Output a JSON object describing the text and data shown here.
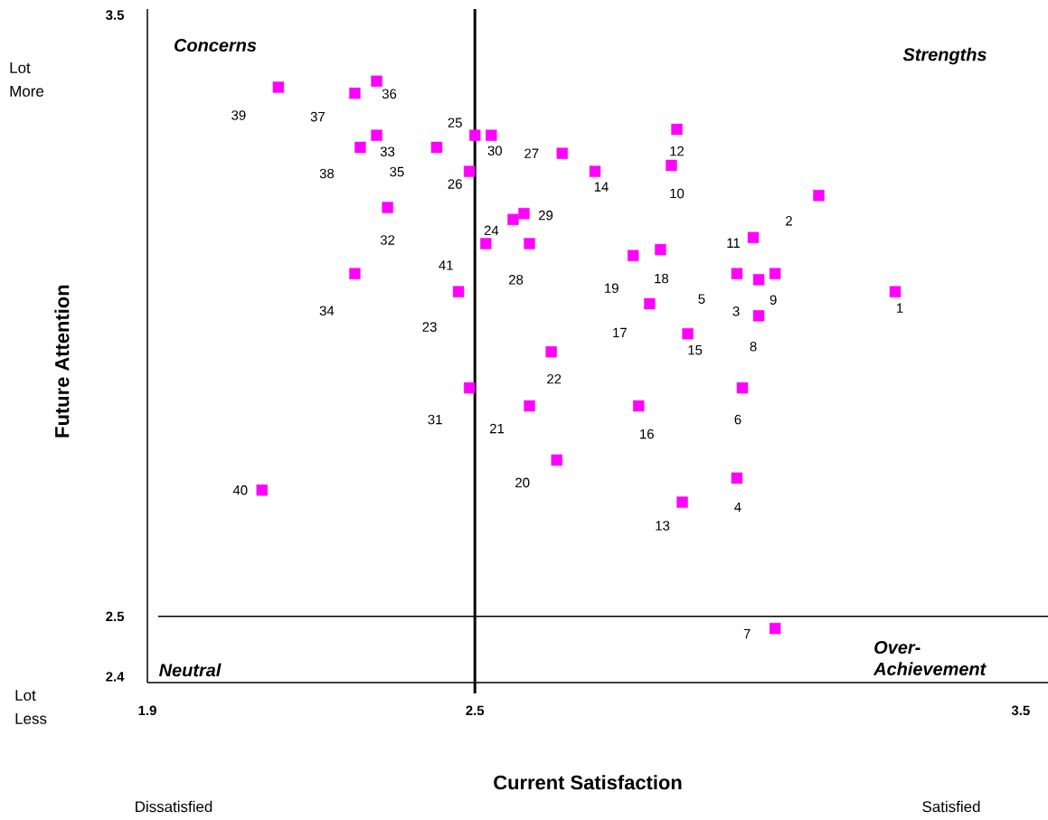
{
  "chart_data": {
    "type": "scatter",
    "xlabel": "Current Satisfaction",
    "ylabel": "Future Attention",
    "x": [
      3.27,
      3.13,
      3.02,
      2.98,
      2.98,
      2.99,
      3.05,
      3.02,
      3.05,
      2.86,
      3.01,
      2.87,
      2.88,
      2.72,
      2.89,
      2.8,
      2.82,
      2.84,
      2.79,
      2.65,
      2.6,
      2.64,
      2.47,
      2.57,
      2.5,
      2.49,
      2.66,
      2.6,
      2.59,
      2.53,
      2.49,
      2.34,
      2.32,
      2.28,
      2.43,
      2.32,
      2.28,
      2.29,
      2.14,
      2.11,
      2.52
    ],
    "values": [
      3.04,
      3.2,
      3.06,
      2.73,
      3.07,
      2.88,
      2.48,
      3.0,
      3.07,
      3.25,
      3.13,
      3.31,
      2.69,
      3.24,
      2.97,
      2.85,
      3.02,
      3.11,
      3.1,
      2.76,
      2.85,
      2.94,
      3.04,
      3.16,
      3.3,
      3.24,
      3.27,
      3.12,
      3.17,
      3.3,
      2.88,
      3.18,
      3.3,
      3.07,
      3.28,
      3.39,
      3.37,
      3.28,
      3.38,
      2.71,
      3.12
    ],
    "color": "#ff00ff",
    "marker": "square",
    "grid": false,
    "xlim": [
      1.9,
      3.55
    ],
    "ylim": [
      2.39,
      3.51
    ],
    "xticks": [
      1.9,
      2.5,
      3.5
    ],
    "yticks": [
      2.4,
      2.5,
      3.5
    ],
    "ref_lines": [
      {
        "axis": "x",
        "value": 2.5,
        "color": "#000000"
      },
      {
        "axis": "y",
        "value": 2.5,
        "color": "#000000"
      }
    ],
    "annotations": [
      "Concerns",
      "Strengths",
      "Neutral",
      "Over-Achievement",
      "Lot More",
      "Lot Less",
      "Dissatisfied",
      "Satisfied",
      {
        "text": "1",
        "x": 3.27,
        "y": 3.04
      },
      {
        "text": "2",
        "x": 3.13,
        "y": 3.2
      },
      {
        "text": "3",
        "x": 3.02,
        "y": 3.06
      },
      {
        "text": "4",
        "x": 2.98,
        "y": 2.73
      },
      {
        "text": "5",
        "x": 2.98,
        "y": 3.07
      },
      {
        "text": "6",
        "x": 2.99,
        "y": 2.88
      },
      {
        "text": "7",
        "x": 3.05,
        "y": 2.48
      },
      {
        "text": "8",
        "x": 3.02,
        "y": 3.0
      },
      {
        "text": "9",
        "x": 3.05,
        "y": 3.07
      },
      {
        "text": "10",
        "x": 2.86,
        "y": 3.25
      },
      {
        "text": "11",
        "x": 3.01,
        "y": 3.13
      },
      {
        "text": "12",
        "x": 2.87,
        "y": 3.31
      },
      {
        "text": "13",
        "x": 2.88,
        "y": 2.69
      },
      {
        "text": "14",
        "x": 2.72,
        "y": 3.24
      },
      {
        "text": "15",
        "x": 2.89,
        "y": 2.97
      },
      {
        "text": "16",
        "x": 2.8,
        "y": 2.85
      },
      {
        "text": "17",
        "x": 2.82,
        "y": 3.02
      },
      {
        "text": "18",
        "x": 2.84,
        "y": 3.11
      },
      {
        "text": "19",
        "x": 2.79,
        "y": 3.1
      },
      {
        "text": "20",
        "x": 2.65,
        "y": 2.76
      },
      {
        "text": "21",
        "x": 2.6,
        "y": 2.85
      },
      {
        "text": "22",
        "x": 2.64,
        "y": 2.94
      },
      {
        "text": "23",
        "x": 2.47,
        "y": 3.04
      },
      {
        "text": "24",
        "x": 2.57,
        "y": 3.16
      },
      {
        "text": "25",
        "x": 2.5,
        "y": 3.3
      },
      {
        "text": "26",
        "x": 2.49,
        "y": 3.24
      },
      {
        "text": "27",
        "x": 2.66,
        "y": 3.27
      },
      {
        "text": "28",
        "x": 2.6,
        "y": 3.12
      },
      {
        "text": "29",
        "x": 2.59,
        "y": 3.17
      },
      {
        "text": "30",
        "x": 2.53,
        "y": 3.3
      },
      {
        "text": "31",
        "x": 2.49,
        "y": 2.88
      },
      {
        "text": "32",
        "x": 2.34,
        "y": 3.18
      },
      {
        "text": "33",
        "x": 2.32,
        "y": 3.3
      },
      {
        "text": "34",
        "x": 2.28,
        "y": 3.07
      },
      {
        "text": "35",
        "x": 2.43,
        "y": 3.28
      },
      {
        "text": "36",
        "x": 2.32,
        "y": 3.39
      },
      {
        "text": "37",
        "x": 2.28,
        "y": 3.37
      },
      {
        "text": "38",
        "x": 2.29,
        "y": 3.28
      },
      {
        "text": "39",
        "x": 2.14,
        "y": 3.38
      },
      {
        "text": "40",
        "x": 2.11,
        "y": 2.71
      },
      {
        "text": "41",
        "x": 2.52,
        "y": 3.12
      }
    ]
  }
}
